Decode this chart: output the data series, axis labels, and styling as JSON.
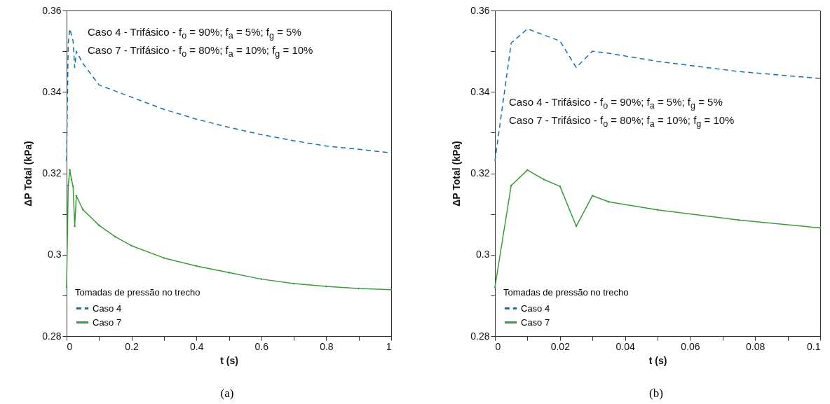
{
  "chart_data": [
    {
      "type": "line",
      "xlabel": "t (s)",
      "ylabel": "ΔP Total (kPa)",
      "legend_title": "Tomadas de pressão no trecho",
      "legend": "bottom left",
      "annotations": [
        "Caso 4 - Trifásico - f$_{o}$ = 90%; f$_{a}$ = 5%; f$_{g}$ = 5%",
        "Caso 7 - Trifásico - f$_{o}$ = 80%; f$_{a}$ = 10%; f$_{g}$ = 10%",
        "(a)"
      ],
      "xlim": [
        0,
        1
      ],
      "ylim": [
        0.28,
        0.36
      ],
      "xticks": [
        0,
        {
          "value": 0.1,
          "label": null
        },
        0.2,
        {
          "value": 0.3,
          "label": null
        },
        0.4,
        {
          "value": 0.5,
          "label": null
        },
        0.6,
        {
          "value": 0.7,
          "label": null
        },
        0.8,
        {
          "value": 0.9,
          "label": null
        },
        1
      ],
      "yticks": [
        0.28,
        {
          "value": 0.29,
          "label": null
        },
        0.3,
        {
          "value": 0.31,
          "label": null
        },
        0.32,
        {
          "value": 0.33,
          "label": null
        },
        0.34,
        {
          "value": 0.35,
          "label": null
        },
        0.36
      ],
      "grid": false,
      "series": [
        {
          "name": "Caso 4",
          "color": "#1b6fa8",
          "line_style": "dashed",
          "marker": "none",
          "x": [
            0,
            0.005,
            0.01,
            0.015,
            0.02,
            0.025,
            0.03,
            0.05,
            0.1,
            0.2,
            0.3,
            0.4,
            0.5,
            0.6,
            0.7,
            0.8,
            0.9,
            1
          ],
          "values": [
            0.323,
            0.352,
            0.3555,
            0.354,
            0.3525,
            0.346,
            0.35,
            0.347,
            0.3417,
            0.3387,
            0.3357,
            0.3333,
            0.3313,
            0.3295,
            0.328,
            0.3267,
            0.3259,
            0.325
          ]
        },
        {
          "name": "Caso 7",
          "color": "#3c9a3c",
          "line_style": "solid",
          "marker": "diamond",
          "x": [
            0,
            0.005,
            0.01,
            0.015,
            0.02,
            0.025,
            0.03,
            0.05,
            0.1,
            0.15,
            0.2,
            0.3,
            0.4,
            0.5,
            0.6,
            0.7,
            0.8,
            0.9,
            1
          ],
          "values": [
            0.292,
            0.317,
            0.3208,
            0.3185,
            0.3168,
            0.307,
            0.3145,
            0.3111,
            0.3072,
            0.3044,
            0.3022,
            0.2992,
            0.2972,
            0.2956,
            0.294,
            0.2929,
            0.2922,
            0.2917,
            0.2914
          ]
        }
      ]
    },
    {
      "type": "line",
      "xlabel": "t (s)",
      "ylabel": "ΔP Total (kPa)",
      "legend_title": "Tomadas de pressão no trecho",
      "legend": "bottom left",
      "annotations": [
        "Caso 4 - Trifásico - f$_{o}$ = 90%; f$_{a}$ = 5%; f$_{g}$ = 5%",
        "Caso 7 - Trifásico - f$_{o}$ = 80%; f$_{a}$ = 10%; f$_{g}$ = 10%",
        "(b)"
      ],
      "xlim": [
        0,
        0.1
      ],
      "ylim": [
        0.28,
        0.36
      ],
      "xticks": [
        0,
        {
          "value": 0.01,
          "label": null
        },
        0.02,
        {
          "value": 0.03,
          "label": null
        },
        0.04,
        {
          "value": 0.05,
          "label": null
        },
        0.06,
        {
          "value": 0.07,
          "label": null
        },
        0.08,
        {
          "value": 0.09,
          "label": null
        },
        0.1
      ],
      "yticks": [
        0.28,
        {
          "value": 0.29,
          "label": null
        },
        0.3,
        {
          "value": 0.31,
          "label": null
        },
        0.32,
        {
          "value": 0.33,
          "label": null
        },
        0.34,
        {
          "value": 0.35,
          "label": null
        },
        0.36
      ],
      "grid": false,
      "series": [
        {
          "name": "Caso 4",
          "color": "#1b6fa8",
          "line_style": "dashed",
          "marker": "none",
          "x": [
            0,
            0.005,
            0.01,
            0.015,
            0.02,
            0.025,
            0.03,
            0.035,
            0.05,
            0.075,
            0.1
          ],
          "values": [
            0.323,
            0.352,
            0.3555,
            0.354,
            0.3525,
            0.346,
            0.35,
            0.3495,
            0.3475,
            0.345,
            0.3433
          ]
        },
        {
          "name": "Caso 7",
          "color": "#3c9a3c",
          "line_style": "solid",
          "marker": "diamond",
          "x": [
            0,
            0.005,
            0.01,
            0.015,
            0.02,
            0.025,
            0.03,
            0.035,
            0.05,
            0.075,
            0.1
          ],
          "values": [
            0.292,
            0.317,
            0.3208,
            0.3185,
            0.3168,
            0.307,
            0.3145,
            0.313,
            0.311,
            0.3085,
            0.3066
          ]
        }
      ]
    }
  ]
}
